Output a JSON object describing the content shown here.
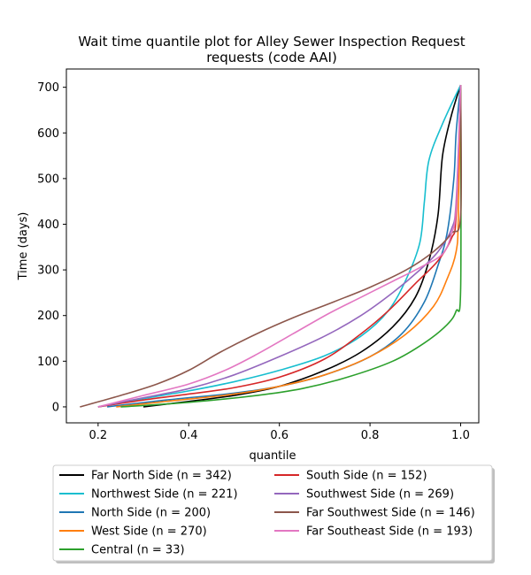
{
  "chart_data": {
    "type": "line",
    "title_lines": [
      "Wait time quantile plot for Alley Sewer Inspection Request",
      "requests (code AAI)"
    ],
    "xlabel": "quantile",
    "ylabel": "Time (days)",
    "xlim": [
      0.13,
      1.04
    ],
    "ylim": [
      -35,
      740
    ],
    "xticks": [
      0.2,
      0.4,
      0.6,
      0.8,
      1.0
    ],
    "xtick_labels": [
      "0.2",
      "0.4",
      "0.6",
      "0.8",
      "1.0"
    ],
    "yticks": [
      0,
      100,
      200,
      300,
      400,
      500,
      600,
      700
    ],
    "ytick_labels": [
      "0",
      "100",
      "200",
      "300",
      "400",
      "500",
      "600",
      "700"
    ],
    "legend_placement": "below plot, two columns",
    "series": [
      {
        "name": "Far North Side (n = 342)",
        "color": "#000000",
        "points": [
          [
            0.3,
            0
          ],
          [
            0.4,
            12
          ],
          [
            0.5,
            25
          ],
          [
            0.6,
            45
          ],
          [
            0.7,
            80
          ],
          [
            0.78,
            120
          ],
          [
            0.85,
            175
          ],
          [
            0.9,
            240
          ],
          [
            0.93,
            320
          ],
          [
            0.95,
            420
          ],
          [
            0.96,
            550
          ],
          [
            0.98,
            640
          ],
          [
            1.0,
            705
          ]
        ]
      },
      {
        "name": "Northwest Side (n = 221)",
        "color": "#17becf",
        "points": [
          [
            0.2,
            0
          ],
          [
            0.3,
            18
          ],
          [
            0.4,
            35
          ],
          [
            0.5,
            55
          ],
          [
            0.6,
            80
          ],
          [
            0.7,
            112
          ],
          [
            0.78,
            155
          ],
          [
            0.84,
            210
          ],
          [
            0.88,
            280
          ],
          [
            0.91,
            360
          ],
          [
            0.92,
            450
          ],
          [
            0.93,
            540
          ],
          [
            0.96,
            620
          ],
          [
            1.0,
            705
          ]
        ]
      },
      {
        "name": "North Side (n = 200)",
        "color": "#1f77b4",
        "points": [
          [
            0.22,
            0
          ],
          [
            0.35,
            15
          ],
          [
            0.5,
            30
          ],
          [
            0.6,
            45
          ],
          [
            0.7,
            70
          ],
          [
            0.8,
            110
          ],
          [
            0.87,
            160
          ],
          [
            0.92,
            230
          ],
          [
            0.95,
            310
          ],
          [
            0.97,
            380
          ],
          [
            0.985,
            500
          ],
          [
            0.99,
            600
          ],
          [
            1.0,
            705
          ]
        ]
      },
      {
        "name": "West Side (n = 270)",
        "color": "#ff7f0e",
        "points": [
          [
            0.24,
            0
          ],
          [
            0.35,
            12
          ],
          [
            0.5,
            28
          ],
          [
            0.6,
            45
          ],
          [
            0.7,
            70
          ],
          [
            0.8,
            110
          ],
          [
            0.88,
            160
          ],
          [
            0.94,
            220
          ],
          [
            0.97,
            280
          ],
          [
            0.99,
            340
          ],
          [
            0.995,
            420
          ],
          [
            1.0,
            705
          ]
        ]
      },
      {
        "name": "Central (n = 33)",
        "color": "#2ca02c",
        "points": [
          [
            0.25,
            0
          ],
          [
            0.4,
            10
          ],
          [
            0.55,
            25
          ],
          [
            0.65,
            40
          ],
          [
            0.75,
            65
          ],
          [
            0.85,
            100
          ],
          [
            0.92,
            140
          ],
          [
            0.97,
            180
          ],
          [
            0.99,
            210
          ],
          [
            1.0,
            260
          ],
          [
            1.0,
            705
          ]
        ]
      },
      {
        "name": "South Side (n = 152)",
        "color": "#d62728",
        "points": [
          [
            0.2,
            0
          ],
          [
            0.3,
            15
          ],
          [
            0.4,
            28
          ],
          [
            0.5,
            42
          ],
          [
            0.6,
            65
          ],
          [
            0.7,
            105
          ],
          [
            0.78,
            160
          ],
          [
            0.84,
            210
          ],
          [
            0.9,
            270
          ],
          [
            0.95,
            320
          ],
          [
            0.98,
            370
          ],
          [
            0.99,
            420
          ],
          [
            1.0,
            705
          ]
        ]
      },
      {
        "name": "Southwest Side (n = 269)",
        "color": "#9467bd",
        "points": [
          [
            0.2,
            0
          ],
          [
            0.3,
            20
          ],
          [
            0.4,
            40
          ],
          [
            0.5,
            70
          ],
          [
            0.6,
            110
          ],
          [
            0.7,
            155
          ],
          [
            0.78,
            200
          ],
          [
            0.85,
            250
          ],
          [
            0.91,
            300
          ],
          [
            0.95,
            340
          ],
          [
            0.98,
            390
          ],
          [
            0.99,
            450
          ],
          [
            1.0,
            705
          ]
        ]
      },
      {
        "name": "Far Southwest Side (n = 146)",
        "color": "#8c564b",
        "points": [
          [
            0.16,
            0
          ],
          [
            0.25,
            25
          ],
          [
            0.33,
            50
          ],
          [
            0.4,
            80
          ],
          [
            0.47,
            120
          ],
          [
            0.55,
            160
          ],
          [
            0.63,
            195
          ],
          [
            0.72,
            230
          ],
          [
            0.8,
            262
          ],
          [
            0.88,
            300
          ],
          [
            0.94,
            340
          ],
          [
            0.98,
            380
          ],
          [
            1.0,
            420
          ],
          [
            1.0,
            705
          ]
        ]
      },
      {
        "name": "Far Southeast Side (n = 193)",
        "color": "#e377c2",
        "points": [
          [
            0.2,
            0
          ],
          [
            0.3,
            25
          ],
          [
            0.4,
            50
          ],
          [
            0.48,
            80
          ],
          [
            0.55,
            115
          ],
          [
            0.63,
            160
          ],
          [
            0.71,
            205
          ],
          [
            0.78,
            240
          ],
          [
            0.85,
            275
          ],
          [
            0.91,
            305
          ],
          [
            0.96,
            335
          ],
          [
            0.98,
            380
          ],
          [
            0.99,
            440
          ],
          [
            1.0,
            705
          ]
        ]
      }
    ]
  }
}
